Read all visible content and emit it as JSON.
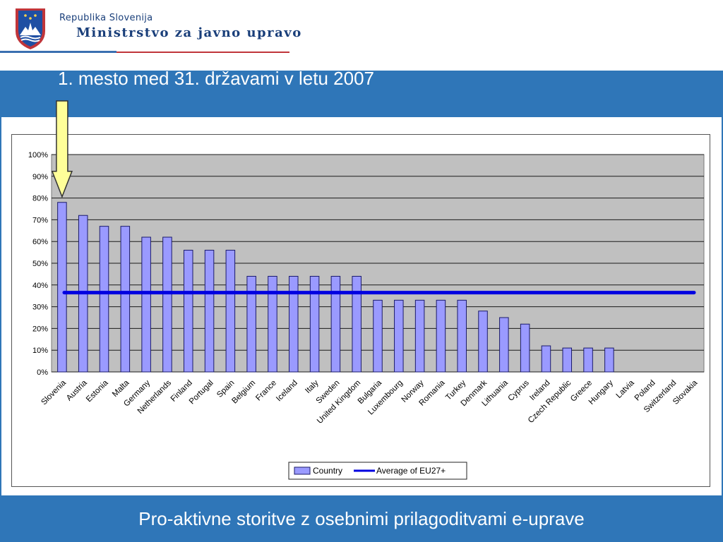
{
  "header": {
    "org_small": "Republika Slovenija",
    "org_big": "Ministrstvo za javno upravo"
  },
  "title": "1. mesto med 31. državami v letu 2007",
  "footer": "Pro-aktivne storitve z osebnimi prilagoditvami e-uprave",
  "colors": {
    "band": "#2f76b8",
    "plot_bg": "#c0c0c0",
    "bar": "#9a9aff",
    "average_line": "#0000e0",
    "arrow_fill": "#ffff99"
  },
  "chart_data": {
    "type": "bar",
    "categories": [
      "Slovenia",
      "Austria",
      "Estonia",
      "Malta",
      "Germany",
      "Netherlands",
      "Finland",
      "Portugal",
      "Spain",
      "Belgium",
      "France",
      "Iceland",
      "Italy",
      "Sweden",
      "United Kingdom",
      "Bulgaria",
      "Luxembourg",
      "Norway",
      "Romania",
      "Turkey",
      "Denmark",
      "Lithuania",
      "Cyprus",
      "Ireland",
      "Czech Republic",
      "Greece",
      "Hungary",
      "Latvia",
      "Poland",
      "Switzerland",
      "Slovakia"
    ],
    "series": [
      {
        "name": "Country",
        "values": [
          78,
          72,
          67,
          67,
          62,
          62,
          56,
          56,
          56,
          44,
          44,
          44,
          44,
          44,
          44,
          33,
          33,
          33,
          33,
          33,
          28,
          25,
          22,
          12,
          11,
          11,
          11,
          0,
          0,
          0,
          0
        ]
      }
    ],
    "average": {
      "name": "Average of EU27+",
      "value": 36.5
    },
    "ylim": [
      0,
      100
    ],
    "yticks": [
      "0%",
      "10%",
      "20%",
      "30%",
      "40%",
      "50%",
      "60%",
      "70%",
      "80%",
      "90%",
      "100%"
    ],
    "legend_position": "bottom",
    "grid": true,
    "highlight": "Slovenia"
  }
}
